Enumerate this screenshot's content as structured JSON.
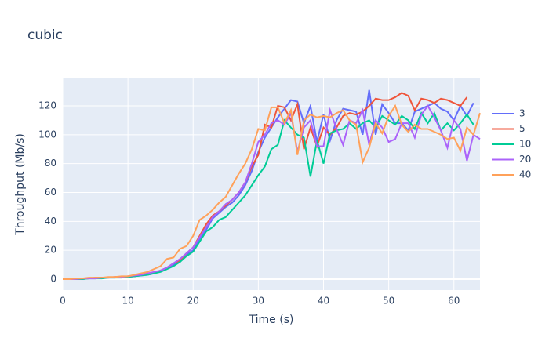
{
  "chart_data": {
    "type": "line",
    "title": "cubic",
    "x_label": "Time (s)",
    "y_label": "Throughput (Mb/s)",
    "x": [
      0,
      1,
      2,
      3,
      4,
      5,
      6,
      7,
      8,
      9,
      10,
      11,
      12,
      13,
      14,
      15,
      16,
      17,
      18,
      19,
      20,
      21,
      22,
      23,
      24,
      25,
      26,
      27,
      28,
      29,
      30,
      31,
      32,
      33,
      34,
      35,
      36,
      37,
      38,
      39,
      40,
      41,
      42,
      43,
      44,
      45,
      46,
      47,
      48,
      49,
      50,
      51,
      52,
      53,
      54,
      55,
      56,
      57,
      58,
      59,
      60,
      61,
      62,
      63,
      64
    ],
    "series": [
      {
        "name": "3",
        "color": "#636efa",
        "values": [
          0,
          0,
          0,
          0,
          0.5,
          0.5,
          1,
          1,
          1,
          1.5,
          1.5,
          2,
          2.5,
          3,
          4,
          6,
          7,
          10,
          12,
          17,
          20,
          28,
          34,
          42,
          46,
          50,
          53,
          58,
          65,
          75,
          88,
          98,
          105,
          112,
          118,
          124,
          123,
          108,
          120,
          95,
          114,
          96,
          110,
          118,
          117,
          116,
          100,
          131,
          100,
          121,
          115,
          108,
          108,
          103,
          116,
          118,
          120,
          122,
          118,
          116,
          110,
          120,
          113,
          122,
          null
        ]
      },
      {
        "name": "5",
        "color": "#EF553B",
        "values": [
          0,
          0,
          0,
          0.5,
          0.5,
          1,
          1,
          1,
          1.5,
          1.5,
          2,
          2,
          3,
          3.5,
          4.5,
          6,
          8,
          11,
          13,
          18,
          22,
          30,
          38,
          44,
          47,
          51,
          55,
          60,
          67,
          78,
          86,
          107,
          105,
          120,
          119,
          110,
          121,
          90,
          105,
          92,
          105,
          100,
          105,
          113,
          115,
          114,
          116,
          120,
          125,
          124,
          124,
          126,
          129,
          127,
          117,
          125,
          124,
          122,
          125,
          124,
          122,
          120,
          126,
          null,
          null
        ]
      },
      {
        "name": "10",
        "color": "#00cc96",
        "values": [
          0,
          0,
          0,
          0,
          0.5,
          0.5,
          0.5,
          1,
          1,
          1,
          1.5,
          2,
          2.5,
          3,
          4,
          5,
          7,
          9,
          12,
          16,
          19,
          26,
          33,
          36,
          41,
          43,
          48,
          53,
          58,
          65,
          72,
          78,
          90,
          93,
          110,
          105,
          100,
          98,
          71,
          96,
          80,
          101,
          103,
          104,
          108,
          104,
          108,
          110,
          105,
          113,
          110,
          107,
          113,
          110,
          104,
          115,
          108,
          115,
          103,
          108,
          103,
          108,
          114,
          107,
          null
        ]
      },
      {
        "name": "20",
        "color": "#ab63fa",
        "values": [
          0,
          0,
          0,
          0.5,
          0.5,
          0.5,
          1,
          1,
          1.5,
          1.5,
          2,
          2.5,
          3,
          4,
          5,
          6,
          8,
          11,
          14,
          18,
          22,
          29,
          36,
          43,
          47,
          52,
          55,
          60,
          67,
          80,
          95,
          100,
          108,
          110,
          107,
          115,
          88,
          105,
          110,
          92,
          92,
          117,
          104,
          93,
          110,
          108,
          117,
          93,
          110,
          105,
          95,
          97,
          108,
          108,
          98,
          114,
          120,
          112,
          103,
          91,
          110,
          104,
          82,
          100,
          97
        ]
      },
      {
        "name": "40",
        "color": "#FFA15A",
        "values": [
          0,
          0,
          0.5,
          0.5,
          1,
          1,
          1,
          1.5,
          1.5,
          2,
          2,
          3,
          4,
          5,
          7,
          9,
          14,
          15,
          21,
          23,
          30,
          41,
          44,
          48,
          53,
          57,
          65,
          73,
          80,
          90,
          104,
          103,
          119,
          119,
          108,
          117,
          86,
          110,
          114,
          112,
          113,
          112,
          115,
          117,
          110,
          107,
          81,
          91,
          108,
          101,
          113,
          120,
          107,
          102,
          107,
          104,
          104,
          102,
          100,
          97,
          98,
          89,
          105,
          100,
          115
        ]
      }
    ],
    "xlim": [
      0,
      64
    ],
    "xticks": [
      0,
      10,
      20,
      30,
      40,
      50,
      60
    ],
    "ylim": [
      -7.6,
      139
    ],
    "yticks": [
      0,
      20,
      40,
      60,
      80,
      100,
      120
    ],
    "grid": true,
    "legend": "right",
    "background": "#e5ecf6"
  }
}
